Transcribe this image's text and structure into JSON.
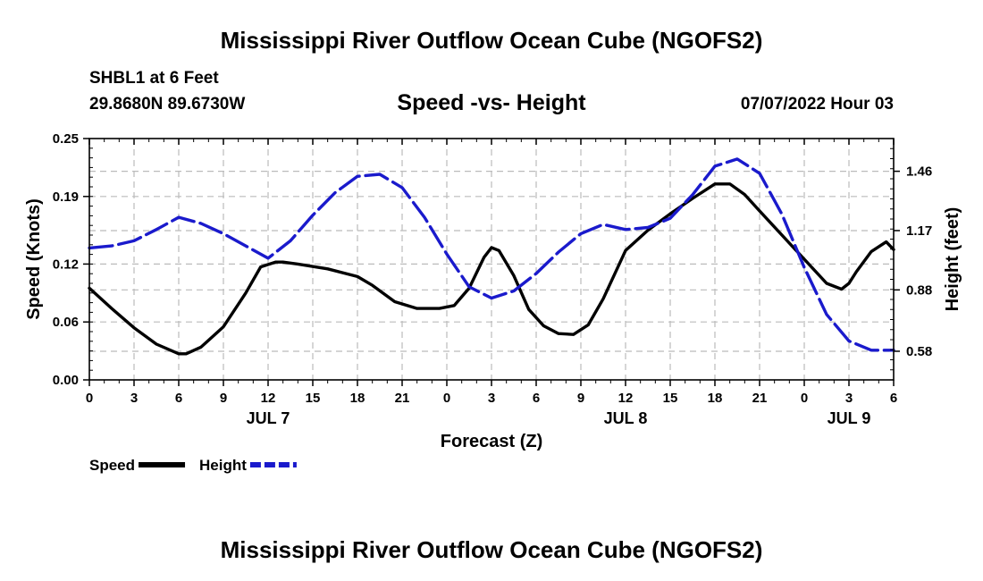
{
  "page": {
    "top_title": "Mississippi River Outflow Ocean Cube (NGOFS2)",
    "bottom_title": "Mississippi River Outflow Ocean Cube (NGOFS2)",
    "station": "SHBL1 at 6 Feet",
    "coords": "29.8680N  89.6730W",
    "subtitle": "Speed -vs- Height",
    "timestamp": "07/07/2022 Hour 03"
  },
  "chart_data": {
    "type": "line",
    "title": "Speed -vs- Height",
    "xlabel": "Forecast (Z)",
    "ylabel": "Speed (Knots)",
    "y2label": "Height (feet)",
    "xlim": [
      0,
      54
    ],
    "ylim": [
      0,
      0.25
    ],
    "y2lim": [
      0.44,
      1.62
    ],
    "grid": true,
    "x_ticks": [
      0,
      3,
      6,
      9,
      12,
      15,
      18,
      21,
      24,
      27,
      30,
      33,
      36,
      39,
      42,
      45,
      48,
      51,
      54
    ],
    "x_tick_labels": [
      "0",
      "3",
      "6",
      "9",
      "12",
      "15",
      "18",
      "21",
      "0",
      "3",
      "6",
      "9",
      "12",
      "15",
      "18",
      "21",
      "0",
      "3",
      "6"
    ],
    "y_ticks": [
      "0.00",
      "0.06",
      "0.12",
      "0.19",
      "0.25"
    ],
    "y_tick_values": [
      0,
      0.06,
      0.12,
      0.19,
      0.25
    ],
    "y2_ticks": [
      "0.58",
      "0.88",
      "1.17",
      "1.46"
    ],
    "y2_tick_values": [
      0.58,
      0.88,
      1.17,
      1.46
    ],
    "day_labels": [
      {
        "label": "JUL 7",
        "x": 12
      },
      {
        "label": "JUL 8",
        "x": 36
      },
      {
        "label": "JUL 9",
        "x": 51
      }
    ],
    "series": [
      {
        "name": "Speed",
        "axis": "left",
        "color": "#000000",
        "x": [
          0,
          1.5,
          3,
          4.5,
          6,
          6.5,
          7.5,
          9,
          10.5,
          11.5,
          12.5,
          13,
          14,
          16,
          18,
          19,
          20.5,
          22,
          23.5,
          24.5,
          25.5,
          26.5,
          27,
          27.5,
          28.5,
          29.5,
          30.5,
          31.5,
          32.5,
          33.5,
          34.5,
          36,
          37.5,
          39,
          40.5,
          42,
          43,
          44,
          45,
          46.5,
          48,
          49.5,
          50.5,
          51,
          51.5,
          52.5,
          53.5,
          54
        ],
        "values": [
          0.095,
          0.074,
          0.054,
          0.037,
          0.027,
          0.027,
          0.034,
          0.055,
          0.09,
          0.117,
          0.122,
          0.122,
          0.12,
          0.115,
          0.107,
          0.098,
          0.081,
          0.074,
          0.074,
          0.077,
          0.095,
          0.127,
          0.137,
          0.134,
          0.108,
          0.073,
          0.056,
          0.048,
          0.047,
          0.057,
          0.084,
          0.134,
          0.155,
          0.172,
          0.188,
          0.203,
          0.203,
          0.192,
          0.175,
          0.15,
          0.125,
          0.1,
          0.094,
          0.1,
          0.112,
          0.133,
          0.143,
          0.135
        ]
      },
      {
        "name": "Height",
        "axis": "right",
        "color": "#1a1acc",
        "x": [
          0,
          1.5,
          3,
          4.5,
          6,
          7.5,
          9,
          10.5,
          12,
          13.5,
          15,
          16.5,
          18,
          19.5,
          21,
          22.5,
          24,
          25.5,
          27,
          28.5,
          30,
          31.5,
          33,
          34.5,
          36,
          37.5,
          39,
          40.5,
          42,
          43.5,
          45,
          46.5,
          48,
          49.5,
          51,
          52.5,
          54
        ],
        "values": [
          1.085,
          1.095,
          1.12,
          1.175,
          1.235,
          1.205,
          1.155,
          1.095,
          1.035,
          1.12,
          1.245,
          1.355,
          1.435,
          1.445,
          1.38,
          1.235,
          1.055,
          0.895,
          0.84,
          0.875,
          0.96,
          1.065,
          1.155,
          1.2,
          1.175,
          1.185,
          1.23,
          1.345,
          1.485,
          1.52,
          1.45,
          1.25,
          0.99,
          0.76,
          0.63,
          0.585,
          0.585
        ]
      }
    ],
    "legend": [
      {
        "label": "Speed",
        "style": "solid",
        "color": "#000000"
      },
      {
        "label": "Height",
        "style": "dashed",
        "color": "#1a1acc"
      }
    ],
    "legend_position": "bottom-left"
  }
}
